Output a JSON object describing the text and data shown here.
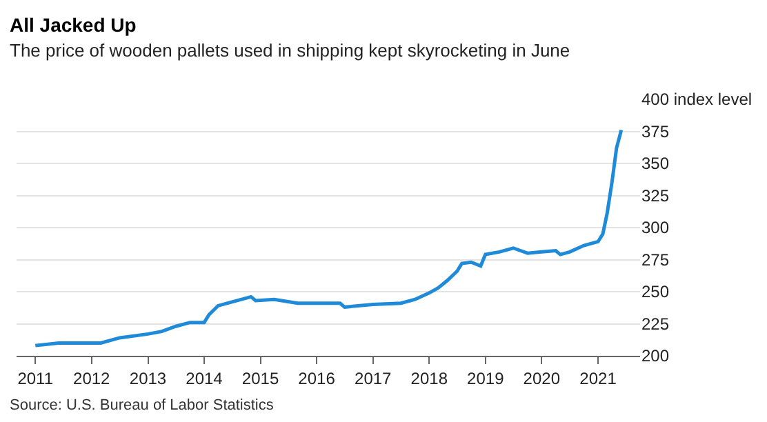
{
  "chart_data": {
    "type": "line",
    "title": "All Jacked Up",
    "subtitle": "The price of wooden pallets used in shipping kept skyrocketing in June",
    "x": [
      "2011-01",
      "2011-06",
      "2012-03",
      "2012-07",
      "2013-01",
      "2013-04",
      "2013-07",
      "2013-10",
      "2014-01",
      "2014-02",
      "2014-04",
      "2014-07",
      "2014-11",
      "2014-12",
      "2015-04",
      "2015-09",
      "2016-01",
      "2016-06",
      "2016-07",
      "2017-01",
      "2017-07",
      "2017-10",
      "2018-01",
      "2018-03",
      "2018-05",
      "2018-07",
      "2018-08",
      "2018-10",
      "2018-12",
      "2019-01",
      "2019-04",
      "2019-07",
      "2019-10",
      "2020-01",
      "2020-04",
      "2020-05",
      "2020-07",
      "2020-10",
      "2021-01",
      "2021-02",
      "2021-03",
      "2021-04",
      "2021-05",
      "2021-06"
    ],
    "series": [
      {
        "color": "#1f8ad8",
        "values": [
          208,
          210,
          210,
          214,
          217,
          219,
          223,
          226,
          226,
          232,
          239,
          242,
          246,
          243,
          244,
          241,
          241,
          241,
          238,
          240,
          241,
          244,
          249,
          253,
          259,
          266,
          272,
          273,
          270,
          279,
          281,
          284,
          280,
          281,
          282,
          279,
          281,
          286,
          289,
          295,
          311,
          335,
          362,
          376
        ]
      }
    ],
    "xlim": [
      "2010-09",
      "2021-10"
    ],
    "xticks": [
      {
        "value": "2011-01",
        "label": "2011"
      },
      {
        "value": "2012-01",
        "label": "2012"
      },
      {
        "value": "2013-01",
        "label": "2013"
      },
      {
        "value": "2014-01",
        "label": "2014"
      },
      {
        "value": "2015-01",
        "label": "2015"
      },
      {
        "value": "2016-01",
        "label": "2016"
      },
      {
        "value": "2017-01",
        "label": "2017"
      },
      {
        "value": "2018-01",
        "label": "2018"
      },
      {
        "value": "2019-01",
        "label": "2019"
      },
      {
        "value": "2020-01",
        "label": "2020"
      },
      {
        "value": "2021-01",
        "label": "2021"
      }
    ],
    "ylim": [
      200,
      400
    ],
    "yticks": [
      200,
      225,
      250,
      275,
      300,
      325,
      350,
      375,
      {
        "value": 400,
        "label": "400 index level"
      }
    ],
    "grid": "y",
    "marker": "none",
    "line_style": "solid",
    "annotations": [
      "Source: U.S. Bureau of Labor Statistics"
    ]
  }
}
